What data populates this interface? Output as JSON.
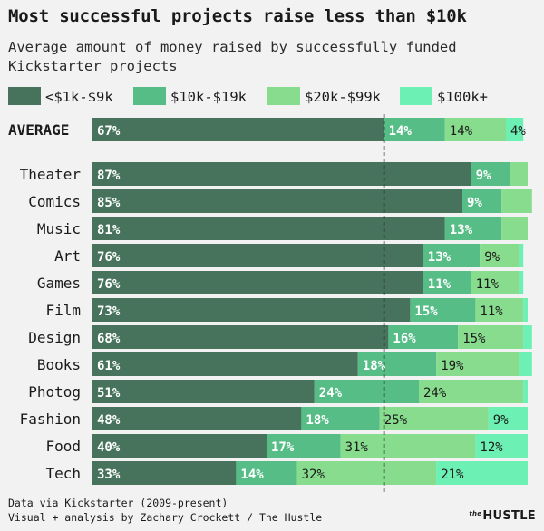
{
  "title": "Most successful projects raise less than $10k",
  "subtitle_line1": "Average amount of money raised by successfully funded",
  "subtitle_line2": "Kickstarter projects",
  "footer_line1": "Data via Kickstarter (2009-present)",
  "footer_line2": "Visual + analysis by Zachary Crockett / The Hustle",
  "brand": {
    "prefix": "the",
    "name": "HUSTLE"
  },
  "colors": {
    "background": "#f2f2f2",
    "series": [
      "#47735c",
      "#56bd87",
      "#88dc8e",
      "#6cf0b4"
    ],
    "light_label": "#ffffff",
    "dark_label": "#1a1a1a"
  },
  "chart_data": {
    "type": "bar",
    "orientation": "horizontal",
    "stacked": true,
    "unit": "%",
    "xlim": [
      0,
      100
    ],
    "legend_position": "top",
    "reference_line": {
      "style": "dashed",
      "value": 67,
      "source": "AVERAGE"
    },
    "series": [
      {
        "name": "<$1k-$9k",
        "values": [
          67,
          87,
          85,
          81,
          76,
          76,
          73,
          68,
          61,
          51,
          48,
          40,
          33
        ]
      },
      {
        "name": "$10k-$19k",
        "values": [
          14,
          9,
          9,
          13,
          13,
          11,
          15,
          16,
          18,
          24,
          18,
          17,
          14
        ]
      },
      {
        "name": "$20k-$99k",
        "values": [
          14,
          4,
          7,
          6,
          9,
          11,
          11,
          15,
          19,
          24,
          25,
          31,
          32
        ]
      },
      {
        "name": "$100k+",
        "values": [
          4,
          0,
          0,
          0,
          1,
          1,
          1,
          2,
          3,
          1,
          9,
          12,
          21
        ]
      }
    ],
    "categories": [
      "AVERAGE",
      "Theater",
      "Comics",
      "Music",
      "Art",
      "Games",
      "Film",
      "Design",
      "Books",
      "Photog",
      "Fashion",
      "Food",
      "Tech"
    ],
    "data_labels": [
      [
        "67%",
        "14%",
        "14%",
        "4%"
      ],
      [
        "87%",
        "9%",
        "",
        ""
      ],
      [
        "85%",
        "9%",
        "",
        ""
      ],
      [
        "81%",
        "13%",
        "",
        ""
      ],
      [
        "76%",
        "13%",
        "9%",
        ""
      ],
      [
        "76%",
        "11%",
        "11%",
        ""
      ],
      [
        "73%",
        "15%",
        "11%",
        ""
      ],
      [
        "68%",
        "16%",
        "15%",
        ""
      ],
      [
        "61%",
        "18%",
        "19%",
        ""
      ],
      [
        "51%",
        "24%",
        "24%",
        ""
      ],
      [
        "48%",
        "18%",
        "25%",
        "9%"
      ],
      [
        "40%",
        "17%",
        "31%",
        "12%"
      ],
      [
        "33%",
        "14%",
        "32%",
        "21%"
      ]
    ]
  }
}
